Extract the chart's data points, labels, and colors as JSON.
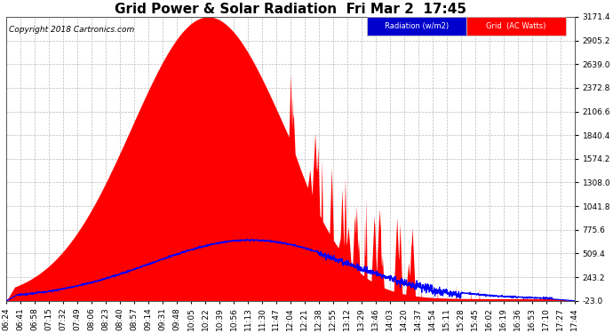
{
  "title": "Grid Power & Solar Radiation  Fri Mar 2  17:45",
  "copyright": "Copyright 2018 Cartronics.com",
  "yticks": [
    -23.0,
    243.2,
    509.4,
    775.6,
    1041.8,
    1308.0,
    1574.2,
    1840.4,
    2106.6,
    2372.8,
    2639.0,
    2905.2,
    3171.4
  ],
  "ymin": -23.0,
  "ymax": 3171.4,
  "grid_color": "#bbbbbb",
  "fill_color": "#ff0000",
  "line_color": "#0000ff",
  "bg_color": "#ffffff",
  "title_fontsize": 11,
  "tick_fontsize": 6.5,
  "time_labels": [
    "06:24",
    "06:41",
    "06:58",
    "07:15",
    "07:32",
    "07:49",
    "08:06",
    "08:23",
    "08:40",
    "08:57",
    "09:14",
    "09:31",
    "09:48",
    "10:05",
    "10:22",
    "10:39",
    "10:56",
    "11:13",
    "11:30",
    "11:47",
    "12:04",
    "12:21",
    "12:38",
    "12:55",
    "13:12",
    "13:29",
    "13:46",
    "14:03",
    "14:20",
    "14:37",
    "14:54",
    "15:11",
    "15:28",
    "15:45",
    "16:02",
    "16:19",
    "16:36",
    "16:53",
    "17:10",
    "17:27",
    "17:44"
  ],
  "rad_label": "Radiation (w/m2)",
  "grid_label": "Grid  (AC Watts)",
  "rad_box_color": "#0000cc",
  "grid_box_color": "#ff0000",
  "legend_text_color": "#ffffff"
}
